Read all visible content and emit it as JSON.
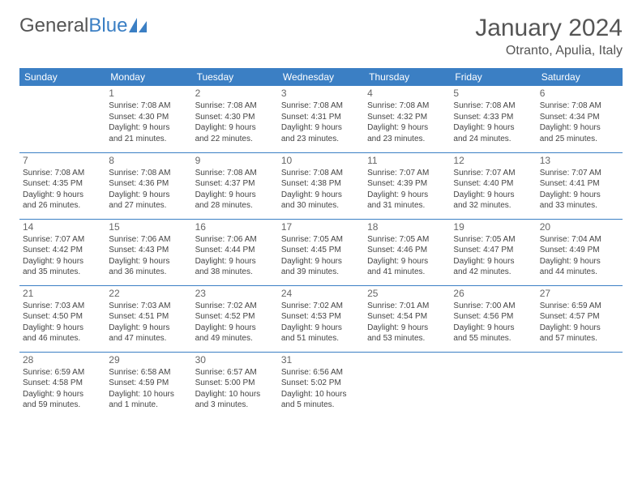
{
  "logo": {
    "text_a": "General",
    "text_b": "Blue"
  },
  "header": {
    "title": "January 2024",
    "location": "Otranto, Apulia, Italy"
  },
  "style": {
    "accent": "#3b7fc4",
    "header_text": "#ffffff",
    "body_text": "#444444",
    "title_text": "#555555",
    "border": "#3b7fc4",
    "background": "#ffffff",
    "title_fontsize": 30,
    "location_fontsize": 16,
    "dayheader_fontsize": 12,
    "daynum_fontsize": 12,
    "cell_fontsize": 10
  },
  "days": [
    "Sunday",
    "Monday",
    "Tuesday",
    "Wednesday",
    "Thursday",
    "Friday",
    "Saturday"
  ],
  "weeks": [
    [
      null,
      {
        "n": "1",
        "sr": "Sunrise: 7:08 AM",
        "ss": "Sunset: 4:30 PM",
        "d1": "Daylight: 9 hours",
        "d2": "and 21 minutes."
      },
      {
        "n": "2",
        "sr": "Sunrise: 7:08 AM",
        "ss": "Sunset: 4:30 PM",
        "d1": "Daylight: 9 hours",
        "d2": "and 22 minutes."
      },
      {
        "n": "3",
        "sr": "Sunrise: 7:08 AM",
        "ss": "Sunset: 4:31 PM",
        "d1": "Daylight: 9 hours",
        "d2": "and 23 minutes."
      },
      {
        "n": "4",
        "sr": "Sunrise: 7:08 AM",
        "ss": "Sunset: 4:32 PM",
        "d1": "Daylight: 9 hours",
        "d2": "and 23 minutes."
      },
      {
        "n": "5",
        "sr": "Sunrise: 7:08 AM",
        "ss": "Sunset: 4:33 PM",
        "d1": "Daylight: 9 hours",
        "d2": "and 24 minutes."
      },
      {
        "n": "6",
        "sr": "Sunrise: 7:08 AM",
        "ss": "Sunset: 4:34 PM",
        "d1": "Daylight: 9 hours",
        "d2": "and 25 minutes."
      }
    ],
    [
      {
        "n": "7",
        "sr": "Sunrise: 7:08 AM",
        "ss": "Sunset: 4:35 PM",
        "d1": "Daylight: 9 hours",
        "d2": "and 26 minutes."
      },
      {
        "n": "8",
        "sr": "Sunrise: 7:08 AM",
        "ss": "Sunset: 4:36 PM",
        "d1": "Daylight: 9 hours",
        "d2": "and 27 minutes."
      },
      {
        "n": "9",
        "sr": "Sunrise: 7:08 AM",
        "ss": "Sunset: 4:37 PM",
        "d1": "Daylight: 9 hours",
        "d2": "and 28 minutes."
      },
      {
        "n": "10",
        "sr": "Sunrise: 7:08 AM",
        "ss": "Sunset: 4:38 PM",
        "d1": "Daylight: 9 hours",
        "d2": "and 30 minutes."
      },
      {
        "n": "11",
        "sr": "Sunrise: 7:07 AM",
        "ss": "Sunset: 4:39 PM",
        "d1": "Daylight: 9 hours",
        "d2": "and 31 minutes."
      },
      {
        "n": "12",
        "sr": "Sunrise: 7:07 AM",
        "ss": "Sunset: 4:40 PM",
        "d1": "Daylight: 9 hours",
        "d2": "and 32 minutes."
      },
      {
        "n": "13",
        "sr": "Sunrise: 7:07 AM",
        "ss": "Sunset: 4:41 PM",
        "d1": "Daylight: 9 hours",
        "d2": "and 33 minutes."
      }
    ],
    [
      {
        "n": "14",
        "sr": "Sunrise: 7:07 AM",
        "ss": "Sunset: 4:42 PM",
        "d1": "Daylight: 9 hours",
        "d2": "and 35 minutes."
      },
      {
        "n": "15",
        "sr": "Sunrise: 7:06 AM",
        "ss": "Sunset: 4:43 PM",
        "d1": "Daylight: 9 hours",
        "d2": "and 36 minutes."
      },
      {
        "n": "16",
        "sr": "Sunrise: 7:06 AM",
        "ss": "Sunset: 4:44 PM",
        "d1": "Daylight: 9 hours",
        "d2": "and 38 minutes."
      },
      {
        "n": "17",
        "sr": "Sunrise: 7:05 AM",
        "ss": "Sunset: 4:45 PM",
        "d1": "Daylight: 9 hours",
        "d2": "and 39 minutes."
      },
      {
        "n": "18",
        "sr": "Sunrise: 7:05 AM",
        "ss": "Sunset: 4:46 PM",
        "d1": "Daylight: 9 hours",
        "d2": "and 41 minutes."
      },
      {
        "n": "19",
        "sr": "Sunrise: 7:05 AM",
        "ss": "Sunset: 4:47 PM",
        "d1": "Daylight: 9 hours",
        "d2": "and 42 minutes."
      },
      {
        "n": "20",
        "sr": "Sunrise: 7:04 AM",
        "ss": "Sunset: 4:49 PM",
        "d1": "Daylight: 9 hours",
        "d2": "and 44 minutes."
      }
    ],
    [
      {
        "n": "21",
        "sr": "Sunrise: 7:03 AM",
        "ss": "Sunset: 4:50 PM",
        "d1": "Daylight: 9 hours",
        "d2": "and 46 minutes."
      },
      {
        "n": "22",
        "sr": "Sunrise: 7:03 AM",
        "ss": "Sunset: 4:51 PM",
        "d1": "Daylight: 9 hours",
        "d2": "and 47 minutes."
      },
      {
        "n": "23",
        "sr": "Sunrise: 7:02 AM",
        "ss": "Sunset: 4:52 PM",
        "d1": "Daylight: 9 hours",
        "d2": "and 49 minutes."
      },
      {
        "n": "24",
        "sr": "Sunrise: 7:02 AM",
        "ss": "Sunset: 4:53 PM",
        "d1": "Daylight: 9 hours",
        "d2": "and 51 minutes."
      },
      {
        "n": "25",
        "sr": "Sunrise: 7:01 AM",
        "ss": "Sunset: 4:54 PM",
        "d1": "Daylight: 9 hours",
        "d2": "and 53 minutes."
      },
      {
        "n": "26",
        "sr": "Sunrise: 7:00 AM",
        "ss": "Sunset: 4:56 PM",
        "d1": "Daylight: 9 hours",
        "d2": "and 55 minutes."
      },
      {
        "n": "27",
        "sr": "Sunrise: 6:59 AM",
        "ss": "Sunset: 4:57 PM",
        "d1": "Daylight: 9 hours",
        "d2": "and 57 minutes."
      }
    ],
    [
      {
        "n": "28",
        "sr": "Sunrise: 6:59 AM",
        "ss": "Sunset: 4:58 PM",
        "d1": "Daylight: 9 hours",
        "d2": "and 59 minutes."
      },
      {
        "n": "29",
        "sr": "Sunrise: 6:58 AM",
        "ss": "Sunset: 4:59 PM",
        "d1": "Daylight: 10 hours",
        "d2": "and 1 minute."
      },
      {
        "n": "30",
        "sr": "Sunrise: 6:57 AM",
        "ss": "Sunset: 5:00 PM",
        "d1": "Daylight: 10 hours",
        "d2": "and 3 minutes."
      },
      {
        "n": "31",
        "sr": "Sunrise: 6:56 AM",
        "ss": "Sunset: 5:02 PM",
        "d1": "Daylight: 10 hours",
        "d2": "and 5 minutes."
      },
      null,
      null,
      null
    ]
  ]
}
